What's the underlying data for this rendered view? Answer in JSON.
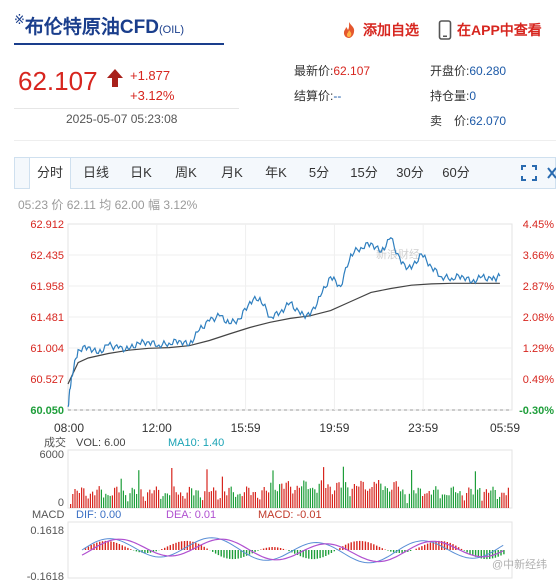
{
  "header": {
    "title_mark": "※",
    "title": "布伦特原油CFD",
    "code": "(OIL)",
    "add_watch_label": "添加自选",
    "app_view_label": "在APP中查看"
  },
  "quote": {
    "price": "62.107",
    "change": "+1.877",
    "change_pct": "+3.12%",
    "timestamp": "2025-05-07 05:23:08",
    "latest_label": "最新价:",
    "latest_value": "62.107",
    "open_label": "开盘价:",
    "open_value": "60.280",
    "settle_label": "结算价:",
    "settle_value": "--",
    "position_label": "持仓量:",
    "position_value": "0",
    "sell_label": "卖　价:",
    "sell_value": "62.070"
  },
  "tabs": [
    "分时",
    "日线",
    "日K",
    "周K",
    "月K",
    "年K",
    "5分",
    "15分",
    "30分",
    "60分"
  ],
  "active_tab": "分时",
  "toolbar_icons": [
    "expand-icon",
    "close-icon"
  ],
  "info_line": {
    "time": "05:23",
    "price_label": "价",
    "price": "62.11",
    "avg_label": "均",
    "avg": "62.00",
    "amp_label": "幅",
    "amp": "3.12%"
  },
  "chart_data": [
    {
      "type": "line",
      "title": "",
      "x_ticks": [
        "08:00",
        "12:00",
        "15:59",
        "19:59",
        "23:59",
        "05:59"
      ],
      "y_ticks_left": [
        "62.912",
        "62.435",
        "61.958",
        "61.481",
        "61.004",
        "60.527",
        "60.050"
      ],
      "y_ticks_right": [
        "4.45%",
        "3.66%",
        "2.87%",
        "2.08%",
        "1.29%",
        "0.49%",
        "-0.30%"
      ],
      "ylim": [
        60.05,
        62.912
      ],
      "base": 60.05,
      "series": [
        {
          "role": "price",
          "color": "#2f7fbf",
          "x": [
            "08:00",
            "08:10",
            "08:30",
            "09:00",
            "09:30",
            "10:00",
            "10:30",
            "11:00",
            "11:30",
            "12:00",
            "12:30",
            "13:00",
            "13:30",
            "14:00",
            "14:30",
            "15:00",
            "15:30",
            "15:59",
            "16:30",
            "17:00",
            "17:30",
            "18:00",
            "18:30",
            "19:00",
            "19:30",
            "19:59",
            "20:30",
            "21:00",
            "21:30",
            "22:00",
            "22:30",
            "23:00",
            "23:30",
            "23:59",
            "00:30",
            "01:00",
            "01:30",
            "02:00",
            "02:30",
            "03:00",
            "03:30",
            "04:00",
            "04:30",
            "05:00",
            "05:23"
          ],
          "values": [
            60.1,
            60.55,
            60.98,
            61.02,
            60.92,
            61.05,
            61.0,
            60.98,
            61.08,
            61.1,
            61.05,
            61.08,
            61.12,
            61.05,
            61.28,
            61.42,
            61.5,
            61.38,
            61.45,
            61.72,
            61.78,
            61.48,
            61.55,
            61.7,
            61.52,
            61.5,
            61.8,
            62.1,
            61.95,
            62.45,
            62.55,
            62.62,
            62.48,
            62.7,
            62.3,
            62.22,
            62.45,
            62.25,
            62.1,
            62.08,
            62.12,
            62.02,
            62.1,
            62.05,
            62.11
          ]
        },
        {
          "role": "average",
          "color": "#444444",
          "x": [
            "08:00",
            "08:30",
            "09:00",
            "10:00",
            "11:00",
            "12:00",
            "13:00",
            "14:00",
            "15:00",
            "15:59",
            "17:00",
            "18:00",
            "19:00",
            "19:59",
            "21:00",
            "22:00",
            "23:00",
            "23:59",
            "01:00",
            "02:00",
            "03:00",
            "04:00",
            "05:00",
            "05:23"
          ],
          "values": [
            60.45,
            60.78,
            60.85,
            60.92,
            60.97,
            61.0,
            61.01,
            61.04,
            61.12,
            61.22,
            61.32,
            61.4,
            61.46,
            61.5,
            61.58,
            61.72,
            61.86,
            61.92,
            61.97,
            61.99,
            62.0,
            62.0,
            62.0,
            62.0
          ]
        }
      ]
    },
    {
      "type": "bar",
      "title": "",
      "label": "成交",
      "legend": [
        "VOL: 6.00",
        "MA10: 1.40"
      ],
      "y_ticks": [
        "6000",
        "0"
      ],
      "ylim": [
        0,
        6000
      ]
    },
    {
      "type": "bar",
      "title": "",
      "label": "MACD",
      "legend": [
        "DIF: 0.00",
        "DEA: 0.01",
        "MACD: -0.01"
      ],
      "y_ticks": [
        "0.1618",
        "-0.1618"
      ],
      "ylim": [
        -0.1618,
        0.1618
      ]
    }
  ],
  "watermark_text": "新浪财经",
  "watermark_corner": "@中新经纬",
  "colors": {
    "up": "#d7261f",
    "down": "#1e9e3a",
    "brand": "#1a3e8c",
    "price_line": "#2f7fbf",
    "avg_line": "#444444",
    "macd_dif": "#5a8fd6",
    "macd_dea": "#b050d0"
  }
}
